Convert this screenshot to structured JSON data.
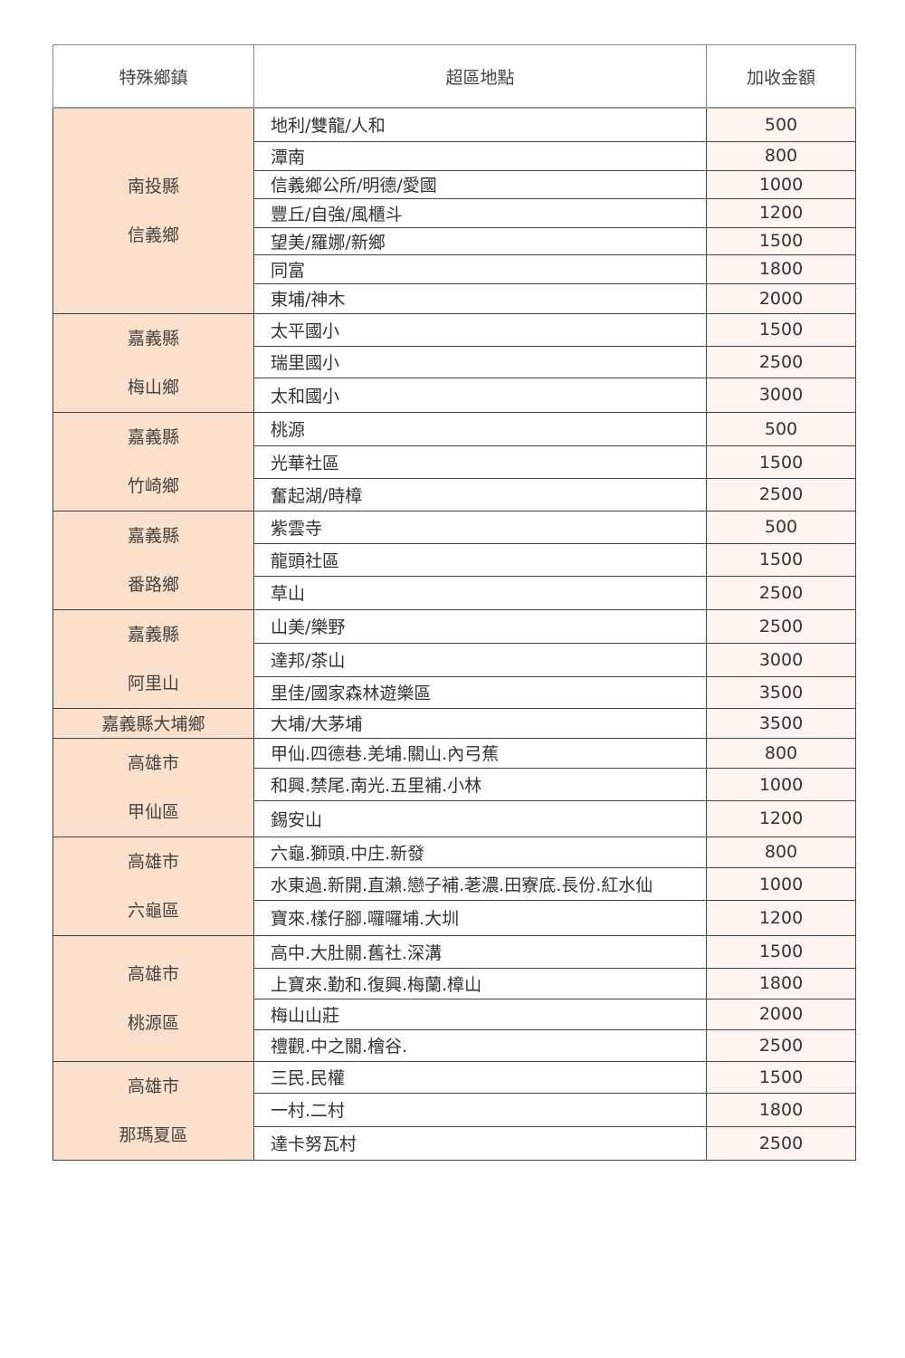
{
  "headers": [
    "特殊鄉鎮",
    "超區地點",
    "加收金額"
  ],
  "groups": [
    {
      "lines": [
        "南投縣",
        "信義鄉"
      ],
      "rows": [
        [
          "地利/雙龍/人和",
          "500"
        ],
        [
          "潭南",
          "800"
        ],
        [
          "信義鄉公所/明德/愛國",
          "1000"
        ],
        [
          "豐丘/自強/風櫃斗",
          "1200"
        ],
        [
          "望美/羅娜/新鄉",
          "1500"
        ],
        [
          "同富",
          "1800"
        ],
        [
          "東埔/神木",
          "2000"
        ]
      ],
      "h": [
        37,
        32,
        31,
        32,
        30,
        32,
        33
      ]
    },
    {
      "lines": [
        "嘉義縣",
        "梅山鄉"
      ],
      "rows": [
        [
          "太平國小",
          "1500"
        ],
        [
          "瑞里國小",
          "2500"
        ],
        [
          "太和國小",
          "3000"
        ]
      ],
      "h": [
        33,
        32,
        34
      ]
    },
    {
      "lines": [
        "嘉義縣",
        "竹崎鄉"
      ],
      "rows": [
        [
          "桃源",
          "500"
        ],
        [
          "光華社區",
          "1500"
        ],
        [
          "奮起湖/時樟",
          "2500"
        ]
      ],
      "h": [
        34,
        32,
        32
      ]
    },
    {
      "lines": [
        "嘉義縣",
        "番路鄉"
      ],
      "rows": [
        [
          "紫雲寺",
          "500"
        ],
        [
          "龍頭社區",
          "1500"
        ],
        [
          "草山",
          "2500"
        ]
      ],
      "h": [
        34,
        33,
        34
      ]
    },
    {
      "lines": [
        "嘉義縣",
        "阿里山"
      ],
      "rows": [
        [
          "山美/樂野",
          "2500"
        ],
        [
          "達邦/茶山",
          "3000"
        ],
        [
          "里佳/國家森林遊樂區",
          "3500"
        ]
      ],
      "h": [
        34,
        34,
        32
      ]
    },
    {
      "lines": [
        "嘉義縣大埔鄉"
      ],
      "rows": [
        [
          "大埔/大茅埔",
          "3500"
        ]
      ],
      "h": [
        33
      ]
    },
    {
      "lines": [
        "高雄市",
        "甲仙區"
      ],
      "rows": [
        [
          "甲仙.四德巷.羌埔.關山.內弓蕉",
          "800"
        ],
        [
          "和興.禁尾.南光.五里補.小林",
          "1000"
        ],
        [
          "錫安山",
          "1200"
        ]
      ],
      "h": [
        33,
        35,
        38
      ]
    },
    {
      "lines": [
        "高雄市",
        "六龜區"
      ],
      "rows": [
        [
          "六龜.獅頭.中庄.新發",
          "800"
        ],
        [
          "水東過.新開.直瀨.戀子補.荖濃.田寮底.長份.紅水仙",
          "1000"
        ],
        [
          "寶來.樣仔腳.囉囉埔.大圳",
          "1200"
        ]
      ],
      "h": [
        32,
        33,
        35
      ]
    },
    {
      "lines": [
        "高雄市",
        "桃源區"
      ],
      "rows": [
        [
          "高中.大肚關.舊社.深溝",
          "1500"
        ],
        [
          "上寶來.勤和.復興.梅蘭.樟山",
          "1800"
        ],
        [
          "梅山山莊",
          "2000"
        ],
        [
          "禮觀.中之關.檜谷.",
          "2500"
        ]
      ],
      "h": [
        36,
        34,
        34,
        35
      ]
    },
    {
      "lines": [
        "高雄市",
        "那瑪夏區"
      ],
      "rows": [
        [
          "三民.民權",
          "1500"
        ],
        [
          "一村.二村",
          "1800"
        ],
        [
          "達卡努瓦村",
          "2500"
        ]
      ],
      "h": [
        32,
        34,
        33
      ]
    }
  ]
}
